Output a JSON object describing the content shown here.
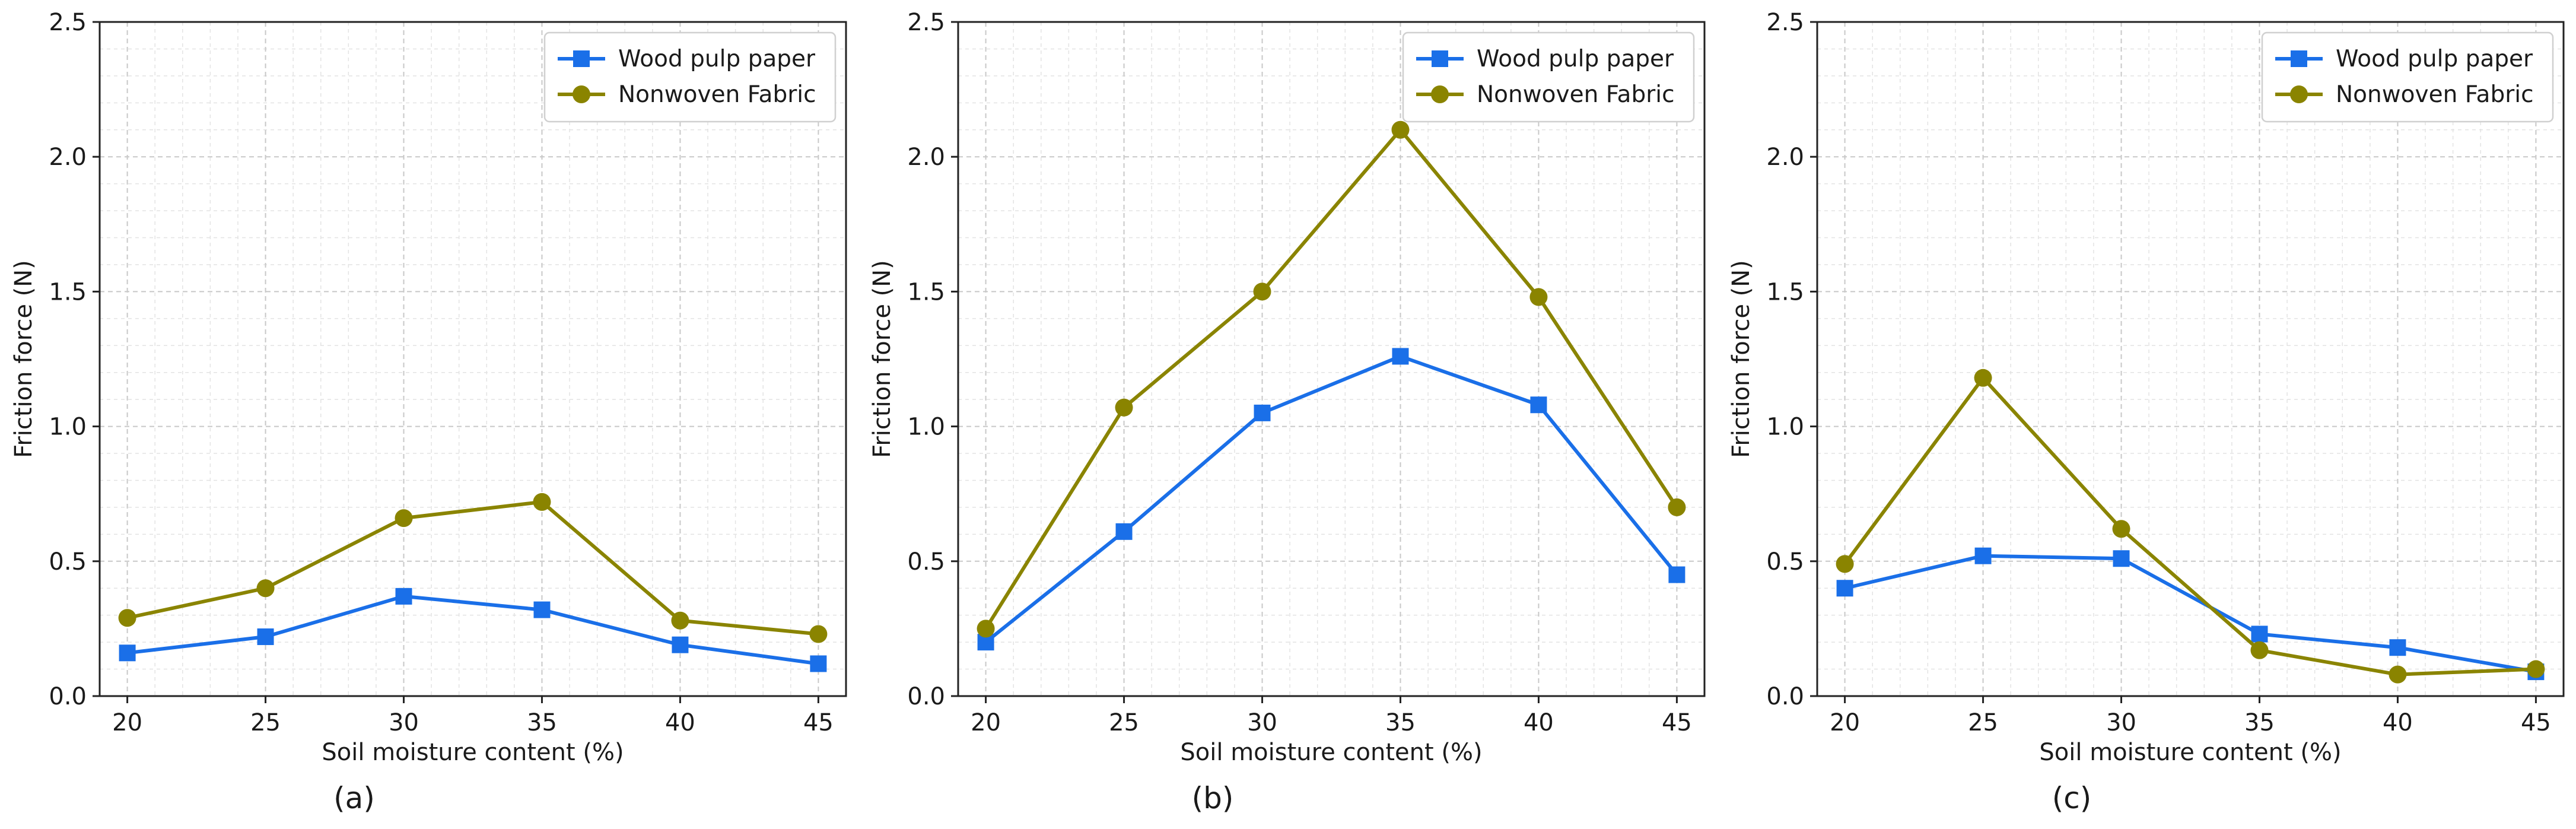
{
  "colors": {
    "wood": "#1a6fe8",
    "nonwoven": "#8a8400"
  },
  "chart_data": [
    {
      "type": "line",
      "panel_label": "(a)",
      "xlabel": "Soil moisture content (%)",
      "ylabel": "Friction force (N)",
      "x": [
        20,
        25,
        30,
        35,
        40,
        45
      ],
      "xlim": [
        19,
        46
      ],
      "ylim": [
        0,
        2.5
      ],
      "xticks": [
        20,
        25,
        30,
        35,
        40,
        45
      ],
      "yticks": [
        0.0,
        0.5,
        1.0,
        1.5,
        2.0,
        2.5
      ],
      "ytick_labels": [
        "0.0",
        "0.5",
        "1.0",
        "1.5",
        "2.0",
        "2.5"
      ],
      "grid": true,
      "legend": "top-right",
      "series": [
        {
          "name": "Wood pulp paper",
          "marker": "square",
          "color": "#1a6fe8",
          "values": [
            0.16,
            0.22,
            0.37,
            0.32,
            0.19,
            0.12
          ]
        },
        {
          "name": "Nonwoven Fabric",
          "marker": "circle",
          "color": "#8a8400",
          "values": [
            0.29,
            0.4,
            0.66,
            0.72,
            0.28,
            0.23
          ]
        }
      ]
    },
    {
      "type": "line",
      "panel_label": "(b)",
      "xlabel": "Soil moisture content (%)",
      "ylabel": "Friction force (N)",
      "x": [
        20,
        25,
        30,
        35,
        40,
        45
      ],
      "xlim": [
        19,
        46
      ],
      "ylim": [
        0,
        2.5
      ],
      "xticks": [
        20,
        25,
        30,
        35,
        40,
        45
      ],
      "yticks": [
        0.0,
        0.5,
        1.0,
        1.5,
        2.0,
        2.5
      ],
      "ytick_labels": [
        "0.0",
        "0.5",
        "1.0",
        "1.5",
        "2.0",
        "2.5"
      ],
      "grid": true,
      "legend": "top-right",
      "series": [
        {
          "name": "Wood pulp paper",
          "marker": "square",
          "color": "#1a6fe8",
          "values": [
            0.2,
            0.61,
            1.05,
            1.26,
            1.08,
            0.45
          ]
        },
        {
          "name": "Nonwoven Fabric",
          "marker": "circle",
          "color": "#8a8400",
          "values": [
            0.25,
            1.07,
            1.5,
            2.1,
            1.48,
            0.7
          ]
        }
      ]
    },
    {
      "type": "line",
      "panel_label": "(c)",
      "xlabel": "Soil moisture content (%)",
      "ylabel": "Friction force (N)",
      "x": [
        20,
        25,
        30,
        35,
        40,
        45
      ],
      "xlim": [
        19,
        46
      ],
      "ylim": [
        0,
        2.5
      ],
      "xticks": [
        20,
        25,
        30,
        35,
        40,
        45
      ],
      "yticks": [
        0.0,
        0.5,
        1.0,
        1.5,
        2.0,
        2.5
      ],
      "ytick_labels": [
        "0.0",
        "0.5",
        "1.0",
        "1.5",
        "2.0",
        "2.5"
      ],
      "grid": true,
      "legend": "top-right",
      "series": [
        {
          "name": "Wood pulp paper",
          "marker": "square",
          "color": "#1a6fe8",
          "values": [
            0.4,
            0.52,
            0.51,
            0.23,
            0.18,
            0.09
          ]
        },
        {
          "name": "Nonwoven Fabric",
          "marker": "circle",
          "color": "#8a8400",
          "values": [
            0.49,
            1.18,
            0.62,
            0.17,
            0.08,
            0.1
          ]
        }
      ]
    }
  ]
}
